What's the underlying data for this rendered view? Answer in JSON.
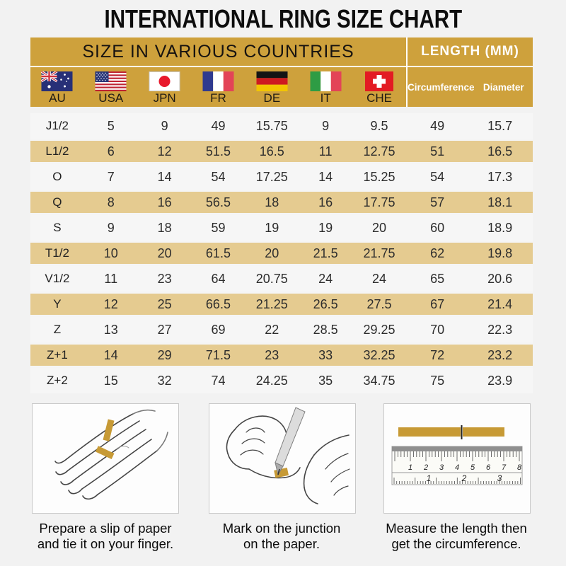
{
  "title": "INTERNATIONAL RING SIZE CHART",
  "colors": {
    "header_gold": "#CEA13C",
    "row_tan": "#E5CB90",
    "page_background": "#F2F2F2",
    "paper_strip_gold": "#C79A35"
  },
  "chart_data": {
    "type": "table",
    "title": "INTERNATIONAL RING SIZE CHART",
    "column_groups": [
      "SIZE IN VARIOUS COUNTRIES",
      "LENGTH (MM)"
    ],
    "columns": [
      "AU",
      "USA",
      "JPN",
      "FR",
      "DE",
      "IT",
      "CHE",
      "Circumference",
      "Diameter"
    ],
    "flag_icons": [
      "flag-au-icon",
      "flag-usa-icon",
      "flag-jpn-icon",
      "flag-fr-icon",
      "flag-de-icon",
      "flag-it-icon",
      "flag-che-icon"
    ],
    "rows": [
      [
        "J1/2",
        "5",
        "9",
        "49",
        "15.75",
        "9",
        "9.5",
        "49",
        "15.7"
      ],
      [
        "L1/2",
        "6",
        "12",
        "51.5",
        "16.5",
        "11",
        "12.75",
        "51",
        "16.5"
      ],
      [
        "O",
        "7",
        "14",
        "54",
        "17.25",
        "14",
        "15.25",
        "54",
        "17.3"
      ],
      [
        "Q",
        "8",
        "16",
        "56.5",
        "18",
        "16",
        "17.75",
        "57",
        "18.1"
      ],
      [
        "S",
        "9",
        "18",
        "59",
        "19",
        "19",
        "20",
        "60",
        "18.9"
      ],
      [
        "T1/2",
        "10",
        "20",
        "61.5",
        "20",
        "21.5",
        "21.75",
        "62",
        "19.8"
      ],
      [
        "V1/2",
        "11",
        "23",
        "64",
        "20.75",
        "24",
        "24",
        "65",
        "20.6"
      ],
      [
        "Y",
        "12",
        "25",
        "66.5",
        "21.25",
        "26.5",
        "27.5",
        "67",
        "21.4"
      ],
      [
        "Z",
        "13",
        "27",
        "69",
        "22",
        "28.5",
        "29.25",
        "70",
        "22.3"
      ],
      [
        "Z+1",
        "14",
        "29",
        "71.5",
        "23",
        "33",
        "32.25",
        "72",
        "23.2"
      ],
      [
        "Z+2",
        "15",
        "32",
        "74",
        "24.25",
        "35",
        "34.75",
        "75",
        "23.9"
      ]
    ]
  },
  "instructions": [
    {
      "caption": "Prepare a slip of paper\nand tie it on your finger."
    },
    {
      "caption": "Mark on the junction\non the paper."
    },
    {
      "caption": "Measure the length then\nget the circumference."
    }
  ],
  "ruler": {
    "cm_numbers": [
      "1",
      "2",
      "3",
      "4",
      "5",
      "6",
      "7",
      "8"
    ],
    "inch_numbers": [
      "1",
      "2",
      "3"
    ]
  }
}
